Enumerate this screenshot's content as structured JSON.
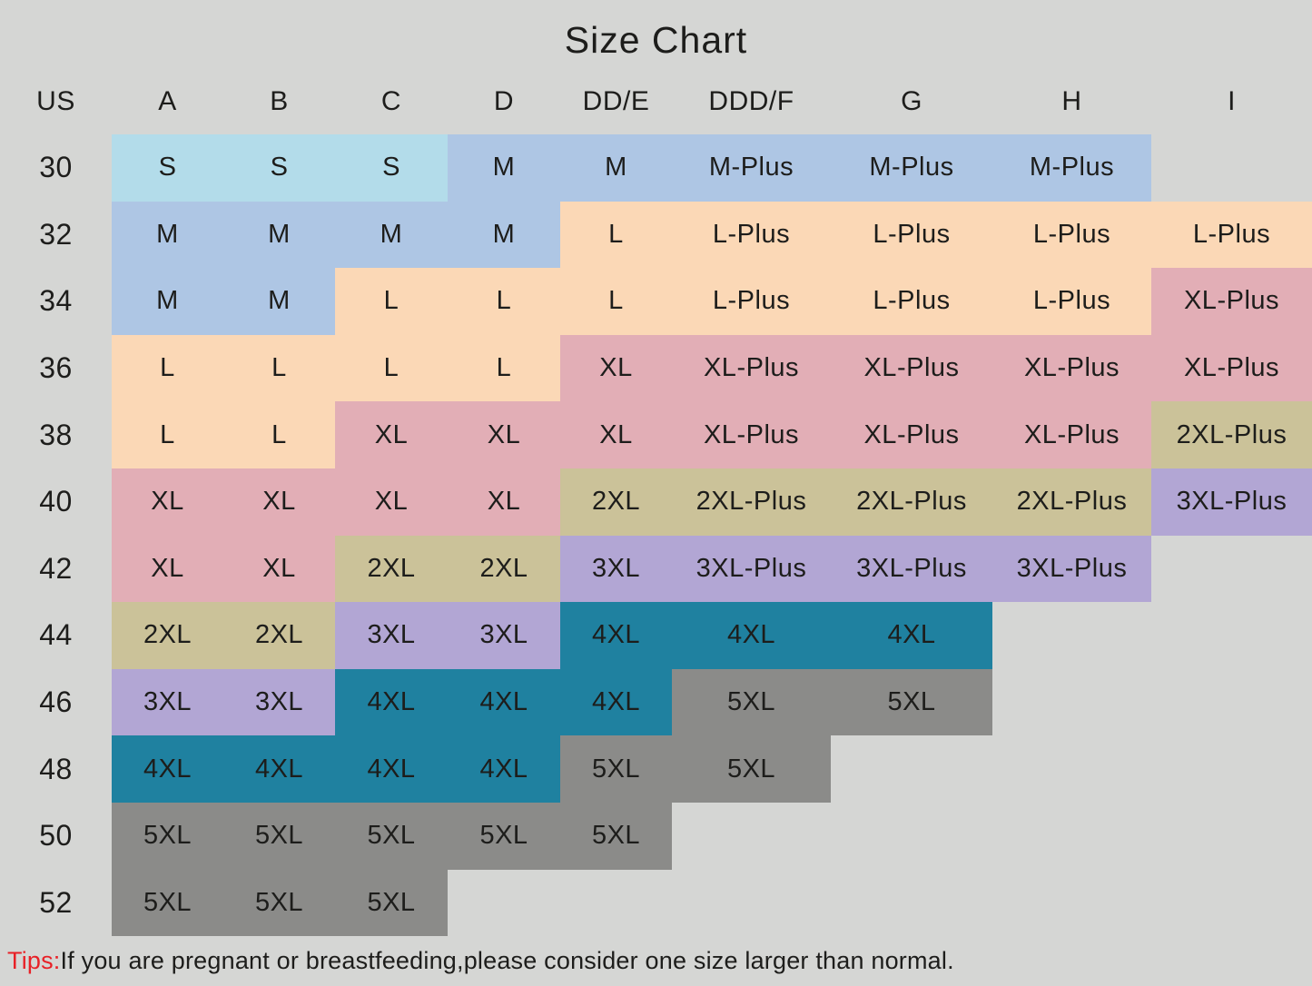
{
  "title": "Size Chart",
  "tips": {
    "label": "Tips:",
    "text": "If you are pregnant or breastfeeding,please consider one size larger than normal."
  },
  "colors": {
    "background": "#d5d6d4",
    "text": "#1d1d1b",
    "tips_label_red": "#e82127",
    "palette": {
      "lightblue": "#b3dcea",
      "periwinkle": "#aec6e4",
      "peach": "#fbd8b6",
      "pink": "#e2aeb6",
      "khaki": "#cbc299",
      "purple": "#b2a6d4",
      "teal": "#1f81a0",
      "gray": "#8b8b89"
    }
  },
  "chart_data": {
    "type": "table",
    "title": "Size Chart",
    "columns": [
      "US",
      "A",
      "B",
      "C",
      "D",
      "DD/E",
      "DDD/F",
      "G",
      "H",
      "I"
    ],
    "rows": [
      {
        "us": "30",
        "cells": [
          {
            "label": "S",
            "color": "lightblue"
          },
          {
            "label": "S",
            "color": "lightblue"
          },
          {
            "label": "S",
            "color": "lightblue"
          },
          {
            "label": "M",
            "color": "periwinkle"
          },
          {
            "label": "M",
            "color": "periwinkle"
          },
          {
            "label": "M-Plus",
            "color": "periwinkle"
          },
          {
            "label": "M-Plus",
            "color": "periwinkle"
          },
          {
            "label": "M-Plus",
            "color": "periwinkle"
          },
          null
        ]
      },
      {
        "us": "32",
        "cells": [
          {
            "label": "M",
            "color": "periwinkle"
          },
          {
            "label": "M",
            "color": "periwinkle"
          },
          {
            "label": "M",
            "color": "periwinkle"
          },
          {
            "label": "M",
            "color": "periwinkle"
          },
          {
            "label": "L",
            "color": "peach"
          },
          {
            "label": "L-Plus",
            "color": "peach"
          },
          {
            "label": "L-Plus",
            "color": "peach"
          },
          {
            "label": "L-Plus",
            "color": "peach"
          },
          {
            "label": "L-Plus",
            "color": "peach"
          }
        ]
      },
      {
        "us": "34",
        "cells": [
          {
            "label": "M",
            "color": "periwinkle"
          },
          {
            "label": "M",
            "color": "periwinkle"
          },
          {
            "label": "L",
            "color": "peach"
          },
          {
            "label": "L",
            "color": "peach"
          },
          {
            "label": "L",
            "color": "peach"
          },
          {
            "label": "L-Plus",
            "color": "peach"
          },
          {
            "label": "L-Plus",
            "color": "peach"
          },
          {
            "label": "L-Plus",
            "color": "peach"
          },
          {
            "label": "XL-Plus",
            "color": "pink"
          }
        ]
      },
      {
        "us": "36",
        "cells": [
          {
            "label": "L",
            "color": "peach"
          },
          {
            "label": "L",
            "color": "peach"
          },
          {
            "label": "L",
            "color": "peach"
          },
          {
            "label": "L",
            "color": "peach"
          },
          {
            "label": "XL",
            "color": "pink"
          },
          {
            "label": "XL-Plus",
            "color": "pink"
          },
          {
            "label": "XL-Plus",
            "color": "pink"
          },
          {
            "label": "XL-Plus",
            "color": "pink"
          },
          {
            "label": "XL-Plus",
            "color": "pink"
          }
        ]
      },
      {
        "us": "38",
        "cells": [
          {
            "label": "L",
            "color": "peach"
          },
          {
            "label": "L",
            "color": "peach"
          },
          {
            "label": "XL",
            "color": "pink"
          },
          {
            "label": "XL",
            "color": "pink"
          },
          {
            "label": "XL",
            "color": "pink"
          },
          {
            "label": "XL-Plus",
            "color": "pink"
          },
          {
            "label": "XL-Plus",
            "color": "pink"
          },
          {
            "label": "XL-Plus",
            "color": "pink"
          },
          {
            "label": "2XL-Plus",
            "color": "khaki"
          }
        ]
      },
      {
        "us": "40",
        "cells": [
          {
            "label": "XL",
            "color": "pink"
          },
          {
            "label": "XL",
            "color": "pink"
          },
          {
            "label": "XL",
            "color": "pink"
          },
          {
            "label": "XL",
            "color": "pink"
          },
          {
            "label": "2XL",
            "color": "khaki"
          },
          {
            "label": "2XL-Plus",
            "color": "khaki"
          },
          {
            "label": "2XL-Plus",
            "color": "khaki"
          },
          {
            "label": "2XL-Plus",
            "color": "khaki"
          },
          {
            "label": "3XL-Plus",
            "color": "purple"
          }
        ]
      },
      {
        "us": "42",
        "cells": [
          {
            "label": "XL",
            "color": "pink"
          },
          {
            "label": "XL",
            "color": "pink"
          },
          {
            "label": "2XL",
            "color": "khaki"
          },
          {
            "label": "2XL",
            "color": "khaki"
          },
          {
            "label": "3XL",
            "color": "purple"
          },
          {
            "label": "3XL-Plus",
            "color": "purple"
          },
          {
            "label": "3XL-Plus",
            "color": "purple"
          },
          {
            "label": "3XL-Plus",
            "color": "purple"
          },
          null
        ]
      },
      {
        "us": "44",
        "cells": [
          {
            "label": "2XL",
            "color": "khaki"
          },
          {
            "label": "2XL",
            "color": "khaki"
          },
          {
            "label": "3XL",
            "color": "purple"
          },
          {
            "label": "3XL",
            "color": "purple"
          },
          {
            "label": "4XL",
            "color": "teal"
          },
          {
            "label": "4XL",
            "color": "teal"
          },
          {
            "label": "4XL",
            "color": "teal"
          },
          null,
          null
        ]
      },
      {
        "us": "46",
        "cells": [
          {
            "label": "3XL",
            "color": "purple"
          },
          {
            "label": "3XL",
            "color": "purple"
          },
          {
            "label": "4XL",
            "color": "teal"
          },
          {
            "label": "4XL",
            "color": "teal"
          },
          {
            "label": "4XL",
            "color": "teal"
          },
          {
            "label": "5XL",
            "color": "gray"
          },
          {
            "label": "5XL",
            "color": "gray"
          },
          null,
          null
        ]
      },
      {
        "us": "48",
        "cells": [
          {
            "label": "4XL",
            "color": "teal"
          },
          {
            "label": "4XL",
            "color": "teal"
          },
          {
            "label": "4XL",
            "color": "teal"
          },
          {
            "label": "4XL",
            "color": "teal"
          },
          {
            "label": "5XL",
            "color": "gray"
          },
          {
            "label": "5XL",
            "color": "gray"
          },
          null,
          null,
          null
        ]
      },
      {
        "us": "50",
        "cells": [
          {
            "label": "5XL",
            "color": "gray"
          },
          {
            "label": "5XL",
            "color": "gray"
          },
          {
            "label": "5XL",
            "color": "gray"
          },
          {
            "label": "5XL",
            "color": "gray"
          },
          {
            "label": "5XL",
            "color": "gray"
          },
          null,
          null,
          null,
          null
        ]
      },
      {
        "us": "52",
        "cells": [
          {
            "label": "5XL",
            "color": "gray"
          },
          {
            "label": "5XL",
            "color": "gray"
          },
          {
            "label": "5XL",
            "color": "gray"
          },
          null,
          null,
          null,
          null,
          null,
          null
        ]
      }
    ],
    "note": "Tips:If you are pregnant or breastfeeding,please consider one size larger than normal."
  }
}
